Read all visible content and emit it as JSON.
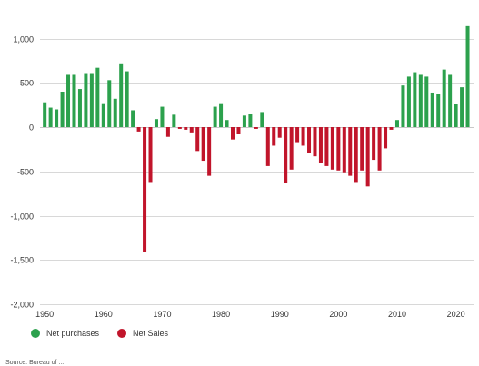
{
  "colors": {
    "positive": "#2ca14d",
    "negative": "#c1152b"
  },
  "legend": {
    "positive_label": "Net purchases",
    "negative_label": "Net Sales"
  },
  "source_note": "Source: Bureau of ...",
  "chart_data": {
    "type": "bar",
    "title": "",
    "xlabel": "",
    "ylabel": "",
    "ylim": [
      -2000,
      1500
    ],
    "xlim": [
      1949.2,
      2023
    ],
    "grid": "horizontal",
    "legend_position": "bottom-left",
    "yticks": [
      -2000,
      -1500,
      -1000,
      -500,
      0,
      500,
      1000
    ],
    "ytick_labels": [
      "-2,000",
      "-1,500",
      "-1,000",
      "-500",
      "0",
      "500",
      "1,000"
    ],
    "xticks": [
      1950,
      1960,
      1970,
      1980,
      1990,
      2000,
      2010,
      2020
    ],
    "xtick_labels": [
      "1950",
      "1960",
      "1970",
      "1980",
      "1990",
      "2000",
      "2010",
      "2020"
    ],
    "series": [
      {
        "name": "Net purchases",
        "color": "#2ca14d"
      },
      {
        "name": "Net Sales",
        "color": "#c1152b"
      }
    ],
    "x": [
      1950,
      1951,
      1952,
      1953,
      1954,
      1955,
      1956,
      1957,
      1958,
      1959,
      1960,
      1961,
      1962,
      1963,
      1964,
      1965,
      1966,
      1967,
      1968,
      1969,
      1970,
      1971,
      1972,
      1973,
      1974,
      1975,
      1976,
      1977,
      1978,
      1979,
      1980,
      1981,
      1982,
      1983,
      1984,
      1985,
      1986,
      1987,
      1988,
      1989,
      1990,
      1991,
      1992,
      1993,
      1994,
      1995,
      1996,
      1997,
      1998,
      1999,
      2000,
      2001,
      2002,
      2003,
      2004,
      2005,
      2006,
      2007,
      2008,
      2009,
      2010,
      2011,
      2012,
      2013,
      2014,
      2015,
      2016,
      2017,
      2018,
      2019,
      2020,
      2021,
      2022
    ],
    "values": [
      280,
      220,
      200,
      400,
      590,
      590,
      430,
      610,
      610,
      670,
      270,
      530,
      320,
      720,
      630,
      190,
      -50,
      -1410,
      -620,
      90,
      230,
      -110,
      140,
      -20,
      -30,
      -60,
      -270,
      -380,
      -550,
      230,
      270,
      80,
      -140,
      -80,
      130,
      150,
      -20,
      170,
      -440,
      -210,
      -120,
      -630,
      -480,
      -170,
      -210,
      -290,
      -330,
      -410,
      -440,
      -480,
      -490,
      -510,
      -550,
      -620,
      -490,
      -670,
      -370,
      -490,
      -240,
      -30,
      80,
      470,
      570,
      620,
      590,
      570,
      390,
      370,
      650,
      590,
      260,
      450,
      1140
    ]
  }
}
